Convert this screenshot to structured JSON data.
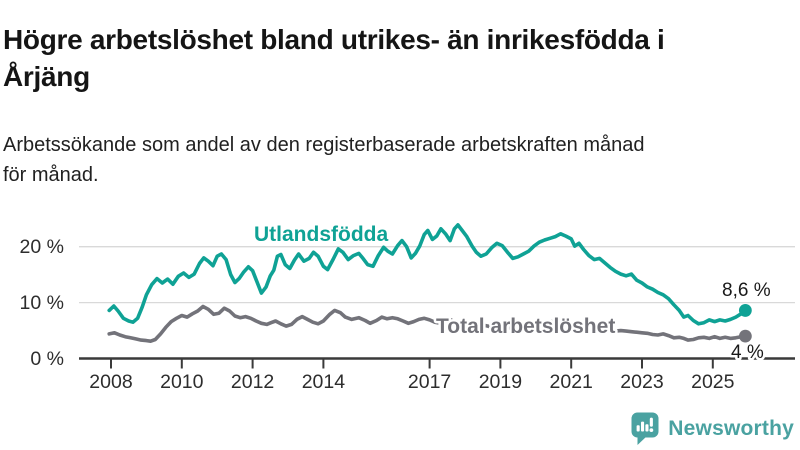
{
  "title": {
    "line1": "Högre arbetslöshet bland utrikes- än inrikesfödda i",
    "line2": "Årjäng"
  },
  "subtitle": {
    "line1": "Arbetssökande som andel av den registerbaserade arbetskraften månad",
    "line2": "för månad."
  },
  "branding": {
    "name": "Newsworthy",
    "color": "#4aa2a1",
    "icon": "newsworthy-speech-bubble-bar-chart-icon"
  },
  "chart_data": {
    "type": "line",
    "title": "Högre arbetslöshet bland utrikes- än inrikesfödda i Årjäng",
    "subtitle": "Arbetssökande som andel av den registerbaserade arbetskraften månad för månad.",
    "grid": "horizontal",
    "legend_position": "inline-labels",
    "x_axis": {
      "ticks": [
        2008,
        2010,
        2012,
        2014,
        2017,
        2019,
        2021,
        2023,
        2025
      ],
      "range": [
        2007.1,
        2026.35
      ]
    },
    "y_axis": {
      "unit": "%",
      "ticks": [
        0,
        10,
        20
      ],
      "tick_labels": [
        "0 %",
        "10 %",
        "20 %"
      ],
      "range": [
        0,
        25.5
      ]
    },
    "series": [
      {
        "name": "Utlandsfödda",
        "color": "#0fa295",
        "end_label": "8,6 %",
        "end_value": 8.6,
        "points": [
          [
            2007.95,
            8.6
          ],
          [
            2008.08,
            9.4
          ],
          [
            2008.2,
            8.5
          ],
          [
            2008.35,
            7.2
          ],
          [
            2008.5,
            6.7
          ],
          [
            2008.62,
            6.5
          ],
          [
            2008.75,
            7.2
          ],
          [
            2008.88,
            9.2
          ],
          [
            2009.0,
            11.4
          ],
          [
            2009.15,
            13.2
          ],
          [
            2009.3,
            14.3
          ],
          [
            2009.45,
            13.5
          ],
          [
            2009.6,
            14.2
          ],
          [
            2009.75,
            13.3
          ],
          [
            2009.9,
            14.7
          ],
          [
            2010.05,
            15.3
          ],
          [
            2010.2,
            14.5
          ],
          [
            2010.35,
            15.1
          ],
          [
            2010.5,
            17.0
          ],
          [
            2010.62,
            18.0
          ],
          [
            2010.75,
            17.4
          ],
          [
            2010.88,
            16.6
          ],
          [
            2011.0,
            18.3
          ],
          [
            2011.12,
            18.7
          ],
          [
            2011.25,
            17.7
          ],
          [
            2011.38,
            15.0
          ],
          [
            2011.5,
            13.6
          ],
          [
            2011.62,
            14.3
          ],
          [
            2011.75,
            15.5
          ],
          [
            2011.88,
            16.4
          ],
          [
            2012.0,
            15.7
          ],
          [
            2012.12,
            13.8
          ],
          [
            2012.25,
            11.7
          ],
          [
            2012.38,
            12.8
          ],
          [
            2012.5,
            14.8
          ],
          [
            2012.6,
            15.8
          ],
          [
            2012.7,
            18.3
          ],
          [
            2012.8,
            18.6
          ],
          [
            2012.92,
            16.8
          ],
          [
            2013.05,
            16.1
          ],
          [
            2013.18,
            17.6
          ],
          [
            2013.3,
            18.7
          ],
          [
            2013.45,
            17.4
          ],
          [
            2013.6,
            17.9
          ],
          [
            2013.72,
            19.0
          ],
          [
            2013.85,
            18.3
          ],
          [
            2014.0,
            16.5
          ],
          [
            2014.12,
            15.9
          ],
          [
            2014.28,
            17.8
          ],
          [
            2014.42,
            19.6
          ],
          [
            2014.55,
            19.0
          ],
          [
            2014.7,
            17.7
          ],
          [
            2014.85,
            18.4
          ],
          [
            2015.0,
            18.8
          ],
          [
            2015.12,
            17.9
          ],
          [
            2015.25,
            16.8
          ],
          [
            2015.4,
            16.5
          ],
          [
            2015.55,
            18.4
          ],
          [
            2015.7,
            19.9
          ],
          [
            2015.82,
            19.2
          ],
          [
            2015.95,
            18.7
          ],
          [
            2016.1,
            20.2
          ],
          [
            2016.22,
            21.1
          ],
          [
            2016.35,
            20.0
          ],
          [
            2016.48,
            18.0
          ],
          [
            2016.6,
            18.8
          ],
          [
            2016.72,
            20.1
          ],
          [
            2016.85,
            22.2
          ],
          [
            2016.95,
            22.9
          ],
          [
            2017.08,
            21.3
          ],
          [
            2017.2,
            21.9
          ],
          [
            2017.32,
            23.2
          ],
          [
            2017.45,
            22.3
          ],
          [
            2017.58,
            21.1
          ],
          [
            2017.7,
            23.2
          ],
          [
            2017.8,
            23.9
          ],
          [
            2017.92,
            22.9
          ],
          [
            2018.05,
            21.8
          ],
          [
            2018.2,
            20.1
          ],
          [
            2018.32,
            19.0
          ],
          [
            2018.45,
            18.3
          ],
          [
            2018.6,
            18.7
          ],
          [
            2018.75,
            19.8
          ],
          [
            2018.9,
            20.6
          ],
          [
            2019.05,
            20.2
          ],
          [
            2019.2,
            19.0
          ],
          [
            2019.35,
            17.9
          ],
          [
            2019.5,
            18.2
          ],
          [
            2019.65,
            18.7
          ],
          [
            2019.8,
            19.2
          ],
          [
            2019.95,
            20.1
          ],
          [
            2020.1,
            20.8
          ],
          [
            2020.25,
            21.2
          ],
          [
            2020.4,
            21.5
          ],
          [
            2020.55,
            21.8
          ],
          [
            2020.7,
            22.3
          ],
          [
            2020.85,
            21.9
          ],
          [
            2021.0,
            21.4
          ],
          [
            2021.1,
            20.1
          ],
          [
            2021.22,
            20.6
          ],
          [
            2021.35,
            19.5
          ],
          [
            2021.5,
            18.4
          ],
          [
            2021.65,
            17.7
          ],
          [
            2021.8,
            17.9
          ],
          [
            2021.95,
            17.1
          ],
          [
            2022.1,
            16.3
          ],
          [
            2022.25,
            15.6
          ],
          [
            2022.4,
            15.1
          ],
          [
            2022.55,
            14.8
          ],
          [
            2022.7,
            15.1
          ],
          [
            2022.85,
            14.0
          ],
          [
            2023.0,
            13.5
          ],
          [
            2023.15,
            12.8
          ],
          [
            2023.3,
            12.4
          ],
          [
            2023.45,
            11.8
          ],
          [
            2023.6,
            11.4
          ],
          [
            2023.75,
            10.7
          ],
          [
            2023.9,
            9.6
          ],
          [
            2024.05,
            8.6
          ],
          [
            2024.18,
            7.4
          ],
          [
            2024.3,
            7.7
          ],
          [
            2024.45,
            6.8
          ],
          [
            2024.6,
            6.2
          ],
          [
            2024.75,
            6.4
          ],
          [
            2024.9,
            6.9
          ],
          [
            2025.05,
            6.6
          ],
          [
            2025.2,
            6.9
          ],
          [
            2025.35,
            6.7
          ],
          [
            2025.5,
            7.0
          ],
          [
            2025.65,
            7.4
          ],
          [
            2025.8,
            8.0
          ],
          [
            2025.92,
            8.6
          ]
        ]
      },
      {
        "name": "Total arbetslöshet",
        "color": "#73737a",
        "end_label": "4 %",
        "end_value": 4.0,
        "points": [
          [
            2007.95,
            4.4
          ],
          [
            2008.1,
            4.6
          ],
          [
            2008.25,
            4.2
          ],
          [
            2008.4,
            3.9
          ],
          [
            2008.55,
            3.7
          ],
          [
            2008.7,
            3.5
          ],
          [
            2008.85,
            3.3
          ],
          [
            2009.0,
            3.2
          ],
          [
            2009.12,
            3.1
          ],
          [
            2009.25,
            3.4
          ],
          [
            2009.4,
            4.4
          ],
          [
            2009.55,
            5.6
          ],
          [
            2009.7,
            6.6
          ],
          [
            2009.85,
            7.2
          ],
          [
            2010.0,
            7.7
          ],
          [
            2010.15,
            7.4
          ],
          [
            2010.3,
            8.0
          ],
          [
            2010.45,
            8.5
          ],
          [
            2010.6,
            9.3
          ],
          [
            2010.75,
            8.8
          ],
          [
            2010.9,
            7.9
          ],
          [
            2011.05,
            8.1
          ],
          [
            2011.2,
            9.0
          ],
          [
            2011.35,
            8.5
          ],
          [
            2011.5,
            7.6
          ],
          [
            2011.65,
            7.3
          ],
          [
            2011.8,
            7.5
          ],
          [
            2011.95,
            7.2
          ],
          [
            2012.1,
            6.7
          ],
          [
            2012.25,
            6.3
          ],
          [
            2012.4,
            6.1
          ],
          [
            2012.52,
            6.4
          ],
          [
            2012.65,
            6.7
          ],
          [
            2012.8,
            6.2
          ],
          [
            2012.95,
            5.8
          ],
          [
            2013.1,
            6.1
          ],
          [
            2013.25,
            7.0
          ],
          [
            2013.4,
            7.5
          ],
          [
            2013.55,
            7.0
          ],
          [
            2013.7,
            6.5
          ],
          [
            2013.85,
            6.2
          ],
          [
            2014.0,
            6.7
          ],
          [
            2014.18,
            7.9
          ],
          [
            2014.32,
            8.6
          ],
          [
            2014.48,
            8.2
          ],
          [
            2014.62,
            7.4
          ],
          [
            2014.8,
            7.0
          ],
          [
            2015.0,
            7.3
          ],
          [
            2015.18,
            6.8
          ],
          [
            2015.32,
            6.3
          ],
          [
            2015.5,
            6.8
          ],
          [
            2015.65,
            7.4
          ],
          [
            2015.8,
            7.1
          ],
          [
            2015.95,
            7.3
          ],
          [
            2016.1,
            7.1
          ],
          [
            2016.25,
            6.7
          ],
          [
            2016.4,
            6.3
          ],
          [
            2016.55,
            6.6
          ],
          [
            2016.7,
            7.0
          ],
          [
            2016.85,
            7.2
          ],
          [
            2017.0,
            6.9
          ],
          [
            2017.15,
            6.5
          ],
          [
            2017.3,
            6.3
          ],
          [
            2017.45,
            6.7
          ],
          [
            2017.6,
            6.9
          ],
          [
            2017.75,
            6.4
          ],
          [
            2017.9,
            6.0
          ],
          [
            2018.05,
            5.8
          ],
          [
            2018.2,
            5.9
          ],
          [
            2018.35,
            6.2
          ],
          [
            2018.5,
            6.0
          ],
          [
            2018.65,
            5.8
          ],
          [
            2018.8,
            5.5
          ],
          [
            2018.95,
            5.2
          ],
          [
            2019.1,
            5.3
          ],
          [
            2019.25,
            5.5
          ],
          [
            2019.4,
            5.6
          ],
          [
            2019.55,
            5.7
          ],
          [
            2019.7,
            5.5
          ],
          [
            2019.85,
            5.4
          ],
          [
            2020.0,
            5.6
          ],
          [
            2020.15,
            6.0
          ],
          [
            2020.3,
            6.4
          ],
          [
            2020.45,
            6.6
          ],
          [
            2020.6,
            6.4
          ],
          [
            2020.75,
            6.2
          ],
          [
            2020.9,
            6.1
          ],
          [
            2021.05,
            6.2
          ],
          [
            2021.2,
            6.0
          ],
          [
            2021.35,
            5.8
          ],
          [
            2021.5,
            5.6
          ],
          [
            2021.65,
            5.4
          ],
          [
            2021.8,
            5.3
          ],
          [
            2021.95,
            5.2
          ],
          [
            2022.1,
            5.1
          ],
          [
            2022.25,
            4.9
          ],
          [
            2022.4,
            5.0
          ],
          [
            2022.55,
            4.9
          ],
          [
            2022.7,
            4.8
          ],
          [
            2022.85,
            4.7
          ],
          [
            2023.0,
            4.6
          ],
          [
            2023.15,
            4.5
          ],
          [
            2023.3,
            4.3
          ],
          [
            2023.45,
            4.2
          ],
          [
            2023.6,
            4.4
          ],
          [
            2023.75,
            4.1
          ],
          [
            2023.9,
            3.7
          ],
          [
            2024.05,
            3.8
          ],
          [
            2024.18,
            3.6
          ],
          [
            2024.3,
            3.3
          ],
          [
            2024.45,
            3.4
          ],
          [
            2024.6,
            3.7
          ],
          [
            2024.75,
            3.8
          ],
          [
            2024.9,
            3.6
          ],
          [
            2025.05,
            3.9
          ],
          [
            2025.2,
            3.6
          ],
          [
            2025.35,
            3.8
          ],
          [
            2025.5,
            3.6
          ],
          [
            2025.65,
            3.7
          ],
          [
            2025.8,
            3.9
          ],
          [
            2025.92,
            4.0
          ]
        ]
      }
    ]
  }
}
